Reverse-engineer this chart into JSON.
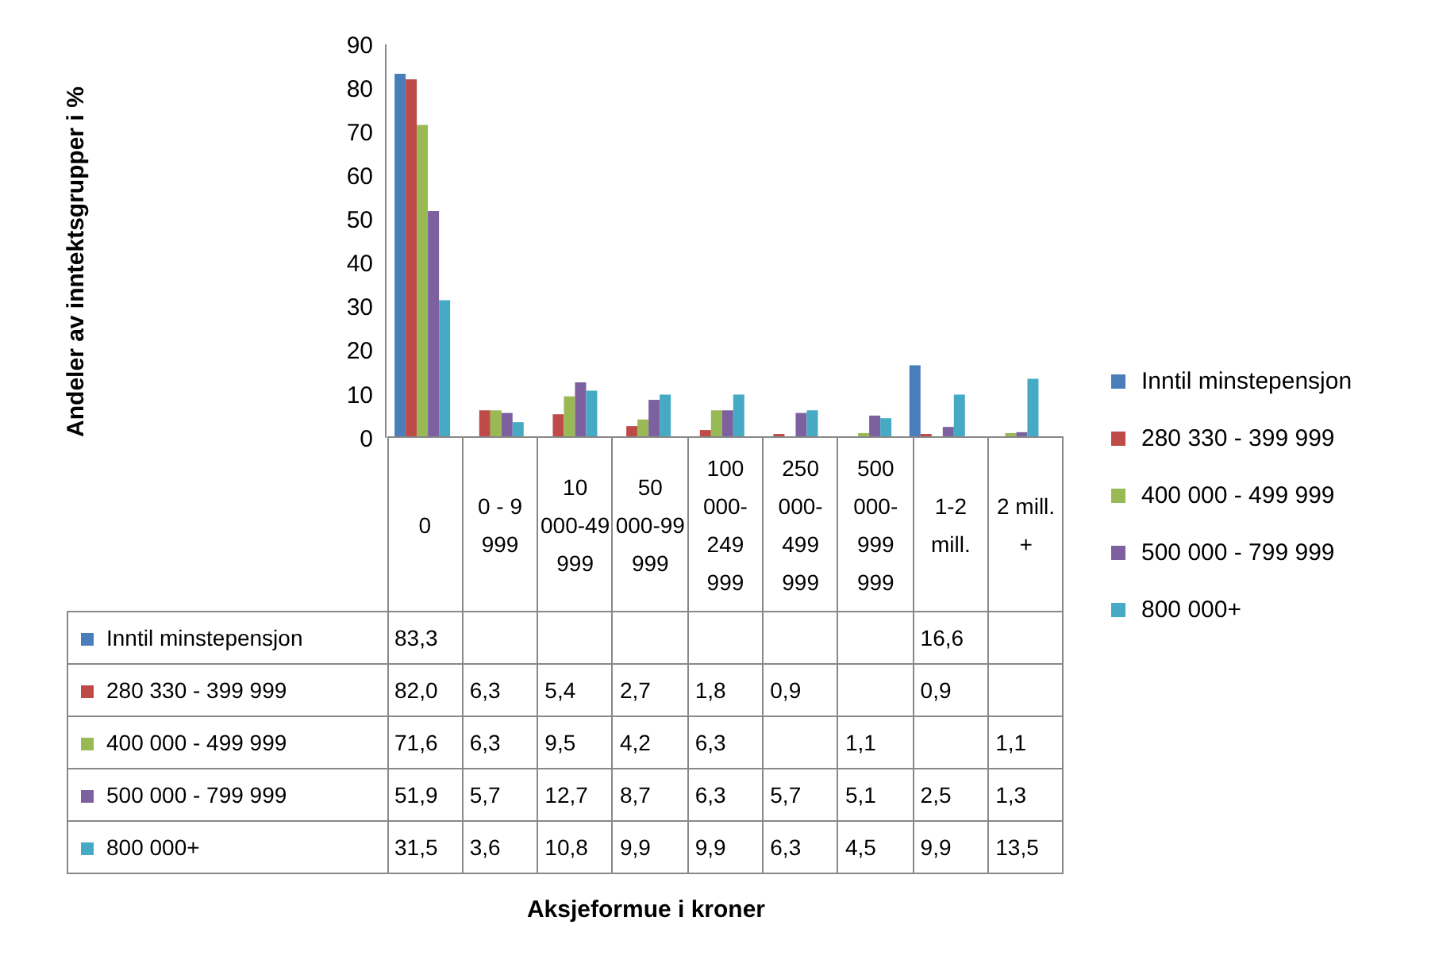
{
  "chart_data": {
    "type": "bar",
    "categories": [
      "0",
      "0 - 9 999",
      "10 000-49 999",
      "50 000-99 999",
      "100 000-249 999",
      "250 000-499 999",
      "500 000-999 999",
      "1-2 mill.",
      "2 mill. +"
    ],
    "series": [
      {
        "name": "Inntil minstepensjon",
        "color": "#4a7ebb",
        "values": [
          83.3,
          null,
          null,
          null,
          null,
          null,
          null,
          16.6,
          null
        ],
        "value_labels": [
          "83,3",
          null,
          null,
          null,
          null,
          null,
          null,
          "16,6",
          null
        ]
      },
      {
        "name": "280 330 - 399 999",
        "color": "#be4b48",
        "values": [
          82.0,
          6.3,
          5.4,
          2.7,
          1.8,
          0.9,
          null,
          0.9,
          null
        ],
        "value_labels": [
          "82,0",
          "6,3",
          "5,4",
          "2,7",
          "1,8",
          "0,9",
          null,
          "0,9",
          null
        ]
      },
      {
        "name": "400 000 - 499 999",
        "color": "#98b954",
        "values": [
          71.6,
          6.3,
          9.5,
          4.2,
          6.3,
          null,
          1.1,
          null,
          1.1
        ],
        "value_labels": [
          "71,6",
          "6,3",
          "9,5",
          "4,2",
          "6,3",
          null,
          "1,1",
          null,
          "1,1"
        ]
      },
      {
        "name": "500 000 - 799 999",
        "color": "#7d60a0",
        "values": [
          51.9,
          5.7,
          12.7,
          8.7,
          6.3,
          5.7,
          5.1,
          2.5,
          1.3
        ],
        "value_labels": [
          "51,9",
          "5,7",
          "12,7",
          "8,7",
          "6,3",
          "5,7",
          "5,1",
          "2,5",
          "1,3"
        ]
      },
      {
        "name": "800 000+",
        "color": "#46aac5",
        "values": [
          31.5,
          3.6,
          10.8,
          9.9,
          9.9,
          6.3,
          4.5,
          9.9,
          13.5
        ],
        "value_labels": [
          "31,5",
          "3,6",
          "10,8",
          "9,9",
          "9,9",
          "6,3",
          "4,5",
          "9,9",
          "13,5"
        ]
      }
    ],
    "ylim": [
      0,
      90
    ],
    "yticks": [
      0,
      10,
      20,
      30,
      40,
      50,
      60,
      70,
      80,
      90
    ],
    "annotations": [
      "Andeler av inntektsgrupper i %",
      "Aksjeformue i kroner"
    ],
    "legend": "right",
    "grid": false
  }
}
